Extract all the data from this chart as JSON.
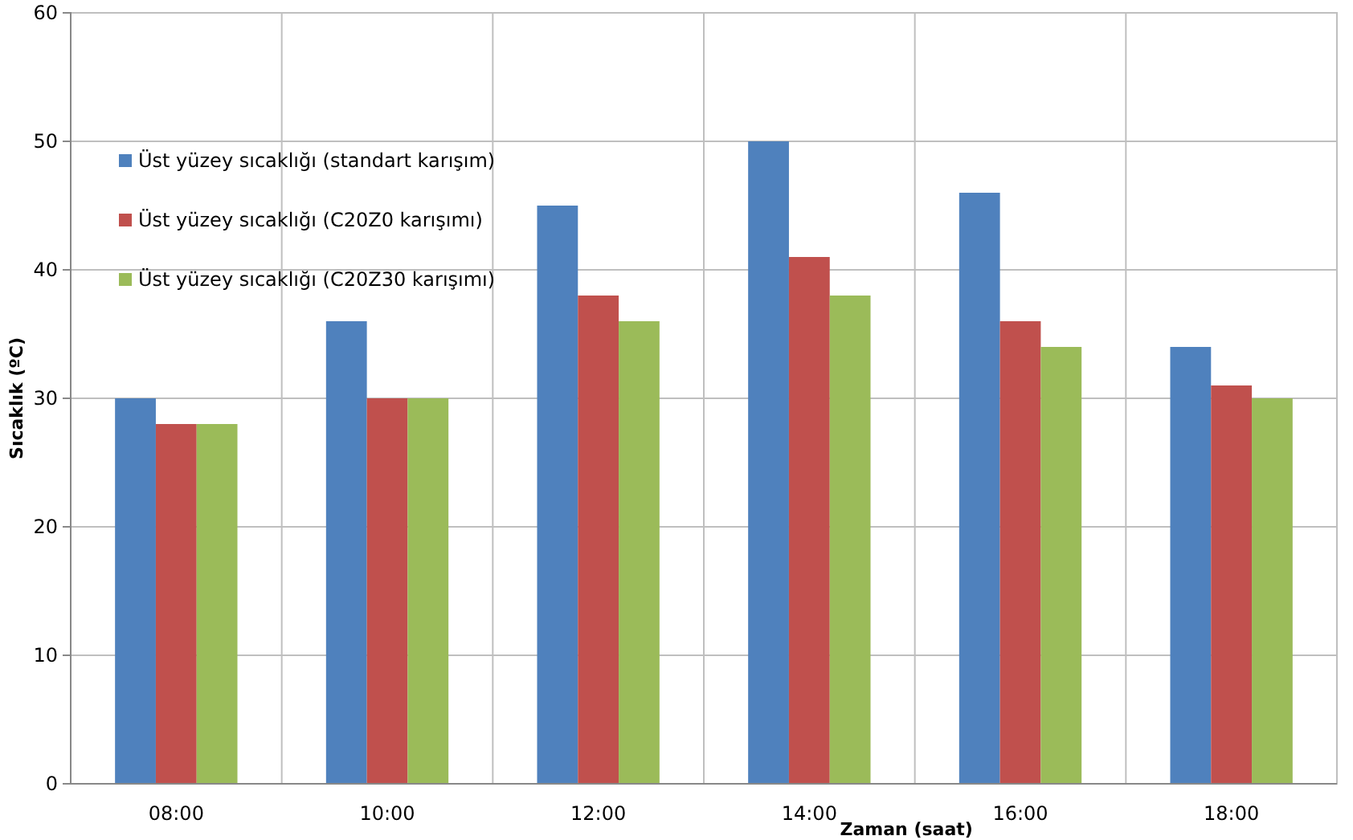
{
  "chart_data": {
    "type": "bar",
    "xlabel": "Zaman  (saat)",
    "ylabel": "Sıcaklık (ºC)",
    "categories": [
      "08:00",
      "10:00",
      "12:00",
      "14:00",
      "16:00",
      "18:00"
    ],
    "series": [
      {
        "name": "Üst yüzey sıcaklığı (standart karışım)",
        "color": "#4f81bd",
        "values": [
          30,
          36,
          45,
          50,
          46,
          34
        ]
      },
      {
        "name": "Üst yüzey sıcaklığı (C20Z0 karışımı)",
        "color": "#c0504d",
        "values": [
          28,
          30,
          38,
          41,
          36,
          31
        ]
      },
      {
        "name": "Üst yüzey sıcaklığı (C20Z30 karışımı)",
        "color": "#9bbb59",
        "values": [
          28,
          30,
          36,
          38,
          34,
          30
        ]
      }
    ],
    "ylim": [
      0,
      60
    ],
    "yticks": [
      0,
      10,
      20,
      30,
      40,
      50,
      60
    ],
    "grid": true,
    "legend": "top left"
  }
}
